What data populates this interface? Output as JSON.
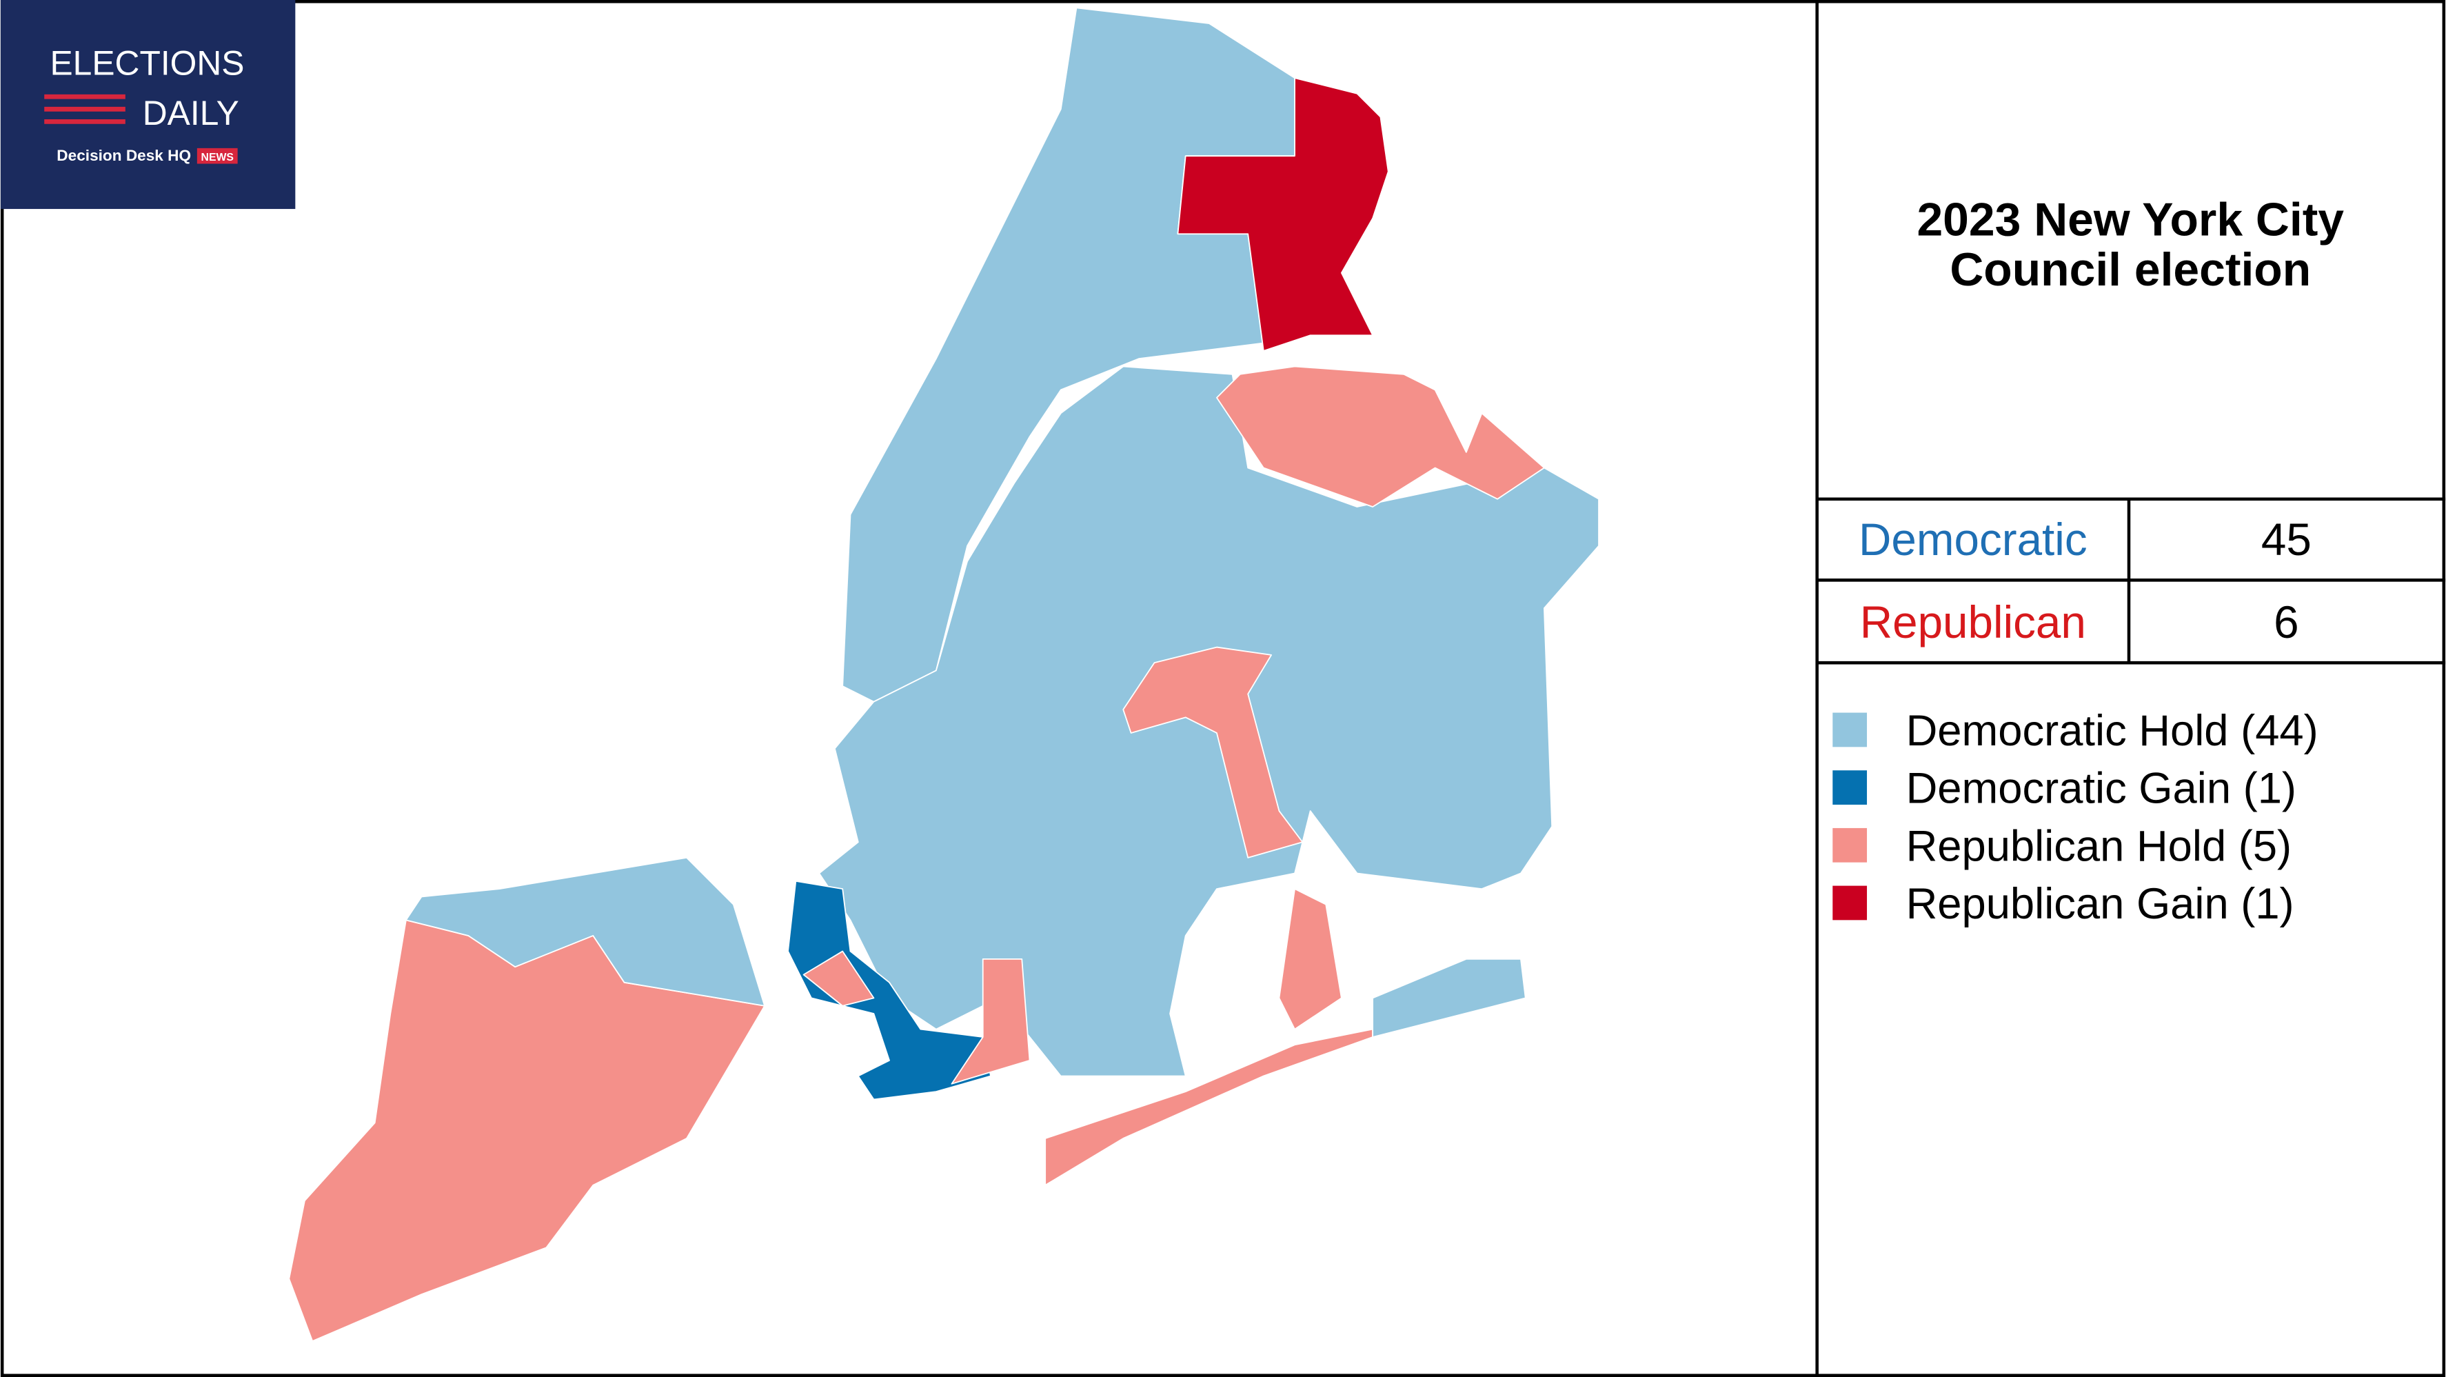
{
  "logo": {
    "line1": "ELECTIONS",
    "line2": "DAILY",
    "brand": "Decision Desk HQ",
    "badge": "NEWS"
  },
  "title": {
    "line1": "2023 New York City",
    "line2": "Council election"
  },
  "table": {
    "rows": [
      {
        "party": "Democratic",
        "seats": 45,
        "color": "#1f6fb4"
      },
      {
        "party": "Republican",
        "seats": 6,
        "color": "#d7191c"
      }
    ]
  },
  "legend": [
    {
      "label": "Democratic Hold (44)",
      "color": "#92c5de"
    },
    {
      "label": "Democratic Gain (1)",
      "color": "#0571b0"
    },
    {
      "label": "Republican Hold (5)",
      "color": "#f4908a"
    },
    {
      "label": "Republican Gain (1)",
      "color": "#ca0020"
    }
  ]
}
